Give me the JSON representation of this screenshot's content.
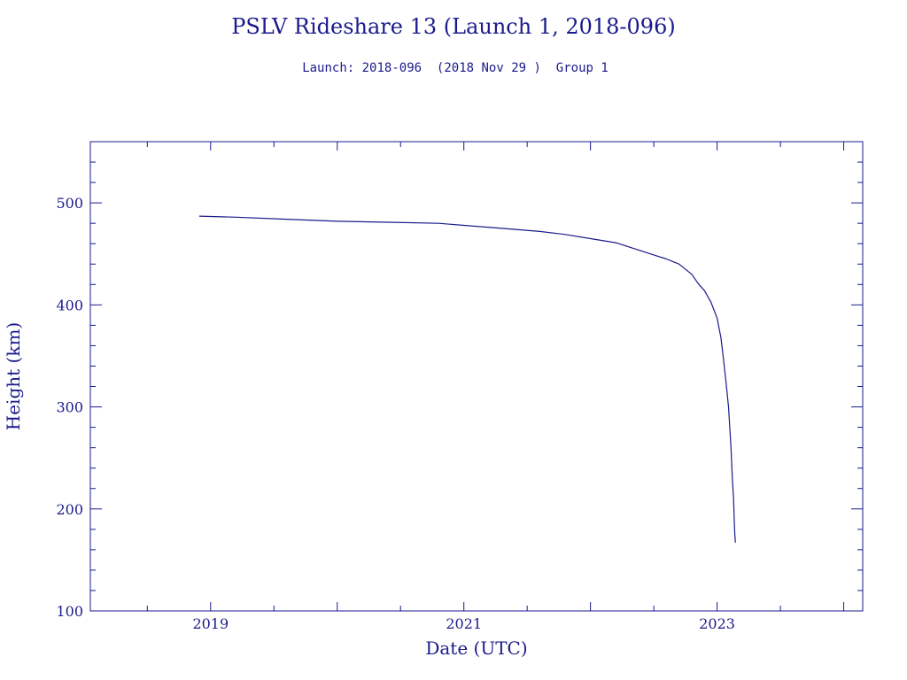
{
  "chart_data": {
    "type": "line",
    "title": "PSLV Rideshare 13 (Launch 1, 2018-096)",
    "subtitle": "Launch: 2018-096  (2018 Nov 29 )  Group 1",
    "xlabel": "Date (UTC)",
    "ylabel": "Height (km)",
    "xlim": [
      2018.05,
      2024.15
    ],
    "ylim": [
      100,
      560
    ],
    "x_ticks": [
      {
        "value": 2019,
        "label": "2019"
      },
      {
        "value": 2021,
        "label": "2021"
      },
      {
        "value": 2023,
        "label": "2023"
      }
    ],
    "y_ticks": [
      {
        "value": 100,
        "label": "100"
      },
      {
        "value": 200,
        "label": "200"
      },
      {
        "value": 300,
        "label": "300"
      },
      {
        "value": 400,
        "label": "400"
      },
      {
        "value": 500,
        "label": "500"
      }
    ],
    "series": [
      {
        "color": "#1a1a8c",
        "x": [
          2018.91,
          2019.2,
          2019.6,
          2020.0,
          2020.4,
          2020.8,
          2021.0,
          2021.3,
          2021.6,
          2021.8,
          2022.0,
          2022.2,
          2022.4,
          2022.5,
          2022.6,
          2022.7,
          2022.8,
          2022.85,
          2022.9,
          2022.95,
          2023.0,
          2023.03,
          2023.05,
          2023.07,
          2023.09,
          2023.1,
          2023.11,
          2023.12,
          2023.13,
          2023.135,
          2023.14,
          2023.145
        ],
        "y": [
          487,
          486,
          484,
          482,
          481,
          480,
          478,
          475,
          472,
          469,
          465,
          461,
          453,
          449,
          445,
          440,
          430,
          421,
          414,
          403,
          387,
          368,
          347,
          325,
          300,
          280,
          260,
          230,
          210,
          190,
          175,
          167
        ]
      }
    ],
    "grid": false,
    "legend": "none"
  }
}
